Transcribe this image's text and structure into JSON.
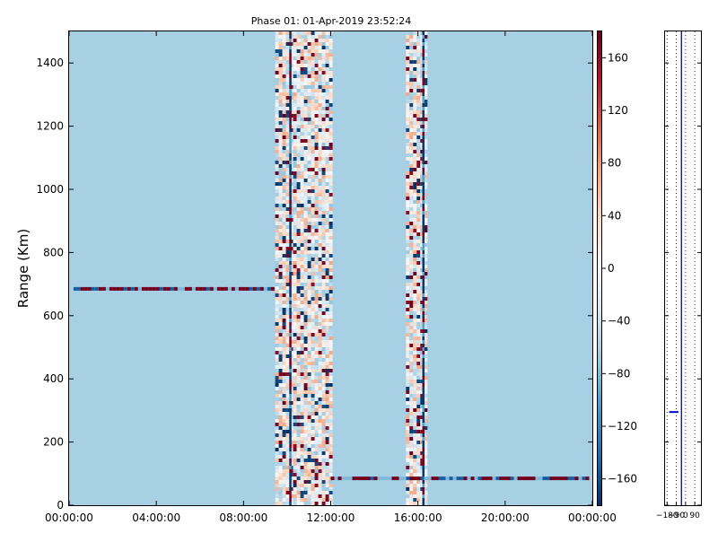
{
  "chart_data": [
    {
      "type": "heatmap",
      "title": "Phase 01: 01-Apr-2019 23:52:24",
      "xlabel": "",
      "ylabel": "Range (Km)",
      "x_ticks": [
        "00:00:00",
        "04:00:00",
        "08:00:00",
        "12:00:00",
        "16:00:00",
        "20:00:00",
        "00:00:00"
      ],
      "x_range_hours": [
        0,
        24
      ],
      "y_ticks": [
        0,
        200,
        400,
        600,
        800,
        1000,
        1200,
        1400
      ],
      "ylim": [
        0,
        1500
      ],
      "grid": false,
      "background_value": -60,
      "noisy_bands_hours": [
        {
          "from": 9.45,
          "to": 12.0
        },
        {
          "from": 15.45,
          "to": 16.3
        }
      ],
      "bright_line_hours": [
        10.1,
        16.2
      ],
      "horizontal_streaks": [
        {
          "range_km": 685,
          "from_hours": 0.2,
          "to_hours": 9.4
        },
        {
          "range_km": 85,
          "from_hours": 12.0,
          "to_hours": 23.7
        }
      ],
      "colorbar": {
        "vmin": -180,
        "vmax": 180,
        "ticks": [
          160,
          120,
          80,
          40,
          0,
          -40,
          -80,
          -120,
          -160
        ],
        "colormap": "RdBu_r",
        "colors": [
          "#053061",
          "#2166ac",
          "#4393c3",
          "#92c5de",
          "#d1e5f0",
          "#f7f7f7",
          "#fddbc7",
          "#f4a582",
          "#d6604d",
          "#b2182b",
          "#67001f"
        ]
      }
    },
    {
      "type": "line",
      "title": "",
      "x_ticks": [
        "-180",
        "-90",
        "0",
        "90"
      ],
      "xlim": [
        -200,
        150
      ],
      "ylim": [
        0,
        1500
      ],
      "dotted_guides_x": [
        -180,
        -90,
        0,
        90
      ],
      "solid_guide_x": -40,
      "marker": {
        "x_from": -160,
        "x_to": -70,
        "range_km": 295
      },
      "line_color": "#0000cc"
    }
  ]
}
